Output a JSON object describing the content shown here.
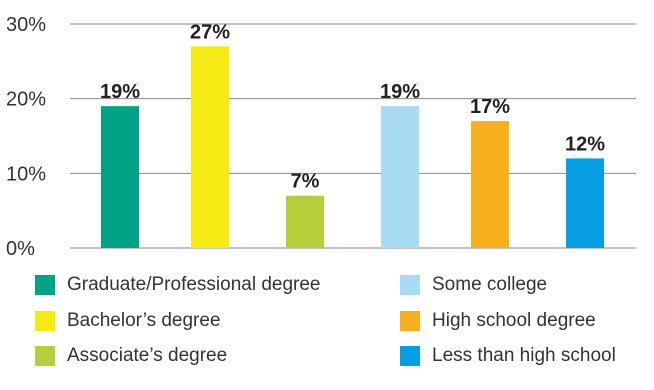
{
  "chart_data": {
    "type": "bar",
    "categories": [
      "Graduate/Professional degree",
      "Bachelor’s degree",
      "Associate’s degree",
      "Some college",
      "High school degree",
      "Less than high school"
    ],
    "values": [
      19,
      27,
      7,
      19,
      17,
      12
    ],
    "data_labels": [
      "19%",
      "27%",
      "7%",
      "19%",
      "17%",
      "12%"
    ],
    "colors": [
      "#00a286",
      "#f5ea14",
      "#b4cf3b",
      "#a8dcf5",
      "#f9b01e",
      "#079ee3"
    ],
    "ylim": [
      0,
      30
    ],
    "yticks": [
      "0%",
      "10%",
      "20%",
      "30%"
    ],
    "grid": true,
    "legend_position": "bottom",
    "title": "",
    "xlabel": "",
    "ylabel": ""
  }
}
